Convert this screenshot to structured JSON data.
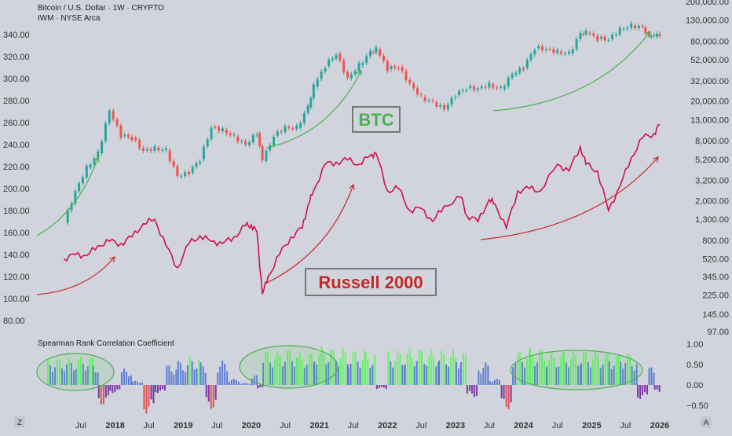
{
  "header": {
    "title": "Bitcoin / U.S. Dollar · 1W · CRYPTO",
    "subtitle": "IWM · NYSE Arca"
  },
  "colors": {
    "background": "#d1d4dc",
    "btc_up": "#26a69a",
    "btc_down": "#ef5350",
    "iwm_line": "#d0104c",
    "btc_label": "#4caf50",
    "iwm_label": "#c62828",
    "arrow_green": "#4caf50",
    "arrow_red": "#c62828",
    "corr_high": "#4cff4c",
    "corr_mid": "#4a6fd0",
    "corr_neg": "#6a1b9a",
    "corr_low": "#e53935"
  },
  "annotations": {
    "btc_label": "BTC",
    "iwm_label": "Russell 2000"
  },
  "controls": {
    "left_button": "Z",
    "right_button": "A"
  },
  "chart_data": [
    {
      "type": "line",
      "series": [
        {
          "name": "IWM",
          "axis": "left",
          "points": [
            [
              "2017-04",
              136
            ],
            [
              "2017-06",
              140
            ],
            [
              "2017-08",
              139
            ],
            [
              "2017-10",
              148
            ],
            [
              "2017-12",
              152
            ],
            [
              "2018-02",
              150
            ],
            [
              "2018-04",
              156
            ],
            [
              "2018-06",
              168
            ],
            [
              "2018-08",
              172
            ],
            [
              "2018-10",
              148
            ],
            [
              "2018-12",
              128
            ],
            [
              "2019-02",
              150
            ],
            [
              "2019-04",
              157
            ],
            [
              "2019-06",
              152
            ],
            [
              "2019-08",
              150
            ],
            [
              "2019-10",
              156
            ],
            [
              "2019-12",
              166
            ],
            [
              "2020-01",
              167
            ],
            [
              "2020-02",
              160
            ],
            [
              "2020-03",
              104
            ],
            [
              "2020-04",
              120
            ],
            [
              "2020-06",
              140
            ],
            [
              "2020-08",
              156
            ],
            [
              "2020-10",
              164
            ],
            [
              "2020-11",
              185
            ],
            [
              "2020-12",
              198
            ],
            [
              "2021-02",
              222
            ],
            [
              "2021-04",
              224
            ],
            [
              "2021-06",
              226
            ],
            [
              "2021-08",
              222
            ],
            [
              "2021-10",
              230
            ],
            [
              "2021-11",
              232
            ],
            [
              "2022-01",
              198
            ],
            [
              "2022-03",
              200
            ],
            [
              "2022-05",
              180
            ],
            [
              "2022-07",
              182
            ],
            [
              "2022-09",
              170
            ],
            [
              "2022-11",
              184
            ],
            [
              "2023-02",
              192
            ],
            [
              "2023-03",
              176
            ],
            [
              "2023-05",
              170
            ],
            [
              "2023-07",
              190
            ],
            [
              "2023-08",
              186
            ],
            [
              "2023-10",
              164
            ],
            [
              "2023-12",
              198
            ],
            [
              "2024-02",
              200
            ],
            [
              "2024-04",
              198
            ],
            [
              "2024-07",
              222
            ],
            [
              "2024-09",
              216
            ],
            [
              "2024-11",
              238
            ],
            [
              "2024-12",
              222
            ],
            [
              "2025-02",
              216
            ],
            [
              "2025-04",
              180
            ],
            [
              "2025-06",
              202
            ],
            [
              "2025-08",
              228
            ],
            [
              "2025-10",
              246
            ],
            [
              "2025-12",
              250
            ],
            [
              "2026-01",
              258
            ]
          ]
        }
      ],
      "y_left_ticks": [
        "340.00",
        "320.00",
        "300.00",
        "280.00",
        "260.00",
        "240.00",
        "220.00",
        "200.00",
        "180.00",
        "160.00",
        "140.00",
        "120.00",
        "100.00",
        "80.00"
      ],
      "ylim_left": [
        80,
        340
      ]
    },
    {
      "type": "candlestick",
      "series": [
        {
          "name": "BTCUSD",
          "axis": "right",
          "scale": "log",
          "points": [
            [
              "2017-04",
              1200
            ],
            [
              "2017-06",
              2500
            ],
            [
              "2017-08",
              4300
            ],
            [
              "2017-10",
              6000
            ],
            [
              "2017-12",
              16000
            ],
            [
              "2018-02",
              9000
            ],
            [
              "2018-04",
              8500
            ],
            [
              "2018-06",
              6400
            ],
            [
              "2018-08",
              6800
            ],
            [
              "2018-10",
              6400
            ],
            [
              "2018-12",
              3500
            ],
            [
              "2019-02",
              3800
            ],
            [
              "2019-04",
              5200
            ],
            [
              "2019-06",
              11000
            ],
            [
              "2019-08",
              10300
            ],
            [
              "2019-10",
              8800
            ],
            [
              "2019-12",
              7200
            ],
            [
              "2020-02",
              9500
            ],
            [
              "2020-03",
              5000
            ],
            [
              "2020-05",
              9000
            ],
            [
              "2020-07",
              11000
            ],
            [
              "2020-09",
              10800
            ],
            [
              "2020-11",
              17500
            ],
            [
              "2020-12",
              28000
            ],
            [
              "2021-02",
              45000
            ],
            [
              "2021-04",
              60000
            ],
            [
              "2021-06",
              34000
            ],
            [
              "2021-08",
              46000
            ],
            [
              "2021-10",
              62000
            ],
            [
              "2021-11",
              66000
            ],
            [
              "2022-01",
              42000
            ],
            [
              "2022-03",
              44000
            ],
            [
              "2022-05",
              30000
            ],
            [
              "2022-07",
              22000
            ],
            [
              "2022-09",
              19500
            ],
            [
              "2022-11",
              16500
            ],
            [
              "2023-01",
              23000
            ],
            [
              "2023-03",
              27000
            ],
            [
              "2023-05",
              27000
            ],
            [
              "2023-07",
              29500
            ],
            [
              "2023-09",
              26500
            ],
            [
              "2023-11",
              37000
            ],
            [
              "2024-01",
              43000
            ],
            [
              "2024-03",
              68000
            ],
            [
              "2024-05",
              67000
            ],
            [
              "2024-07",
              63000
            ],
            [
              "2024-09",
              60000
            ],
            [
              "2024-11",
              95000
            ],
            [
              "2024-12",
              97000
            ],
            [
              "2025-02",
              85000
            ],
            [
              "2025-04",
              84000
            ],
            [
              "2025-06",
              106000
            ],
            [
              "2025-08",
              115000
            ],
            [
              "2025-10",
              110000
            ],
            [
              "2025-11",
              88000
            ],
            [
              "2025-12",
              89000
            ],
            [
              "2026-01",
              92000
            ]
          ]
        }
      ],
      "y_right_ticks": [
        "200,000.00",
        "130,000.00",
        "80,000.00",
        "52,000.00",
        "32,000.00",
        "20,000.00",
        "13,000.00",
        "8,000.00",
        "5,200.00",
        "3,200.00",
        "2,000.00",
        "1,300.00",
        "800.00",
        "520.00",
        "345.00",
        "225.00",
        "145.00",
        "97.00"
      ]
    },
    {
      "type": "bar",
      "title": "Spearman Rank Correlation Coefficient",
      "ylim": [
        -0.6,
        1.05
      ],
      "y_ticks": [
        "1.00",
        "0.50",
        "0.00",
        "−0.50"
      ],
      "segments": [
        [
          "2017-01",
          0.65
        ],
        [
          "2017-06",
          0.7
        ],
        [
          "2017-09",
          0.55
        ],
        [
          "2017-10",
          -0.5
        ],
        [
          "2017-12",
          -0.2
        ],
        [
          "2018-02",
          0.4
        ],
        [
          "2018-04",
          0.1
        ],
        [
          "2018-06",
          -0.7
        ],
        [
          "2018-08",
          -0.2
        ],
        [
          "2018-10",
          0.5
        ],
        [
          "2018-12",
          0.6
        ],
        [
          "2019-02",
          0.7
        ],
        [
          "2019-04",
          0.55
        ],
        [
          "2019-05",
          -0.6
        ],
        [
          "2019-07",
          0.6
        ],
        [
          "2019-09",
          0.15
        ],
        [
          "2019-11",
          0.05
        ],
        [
          "2020-01",
          0.25
        ],
        [
          "2020-02",
          -0.1
        ],
        [
          "2020-03",
          0.85
        ],
        [
          "2020-06",
          0.9
        ],
        [
          "2020-09",
          0.8
        ],
        [
          "2020-12",
          0.95
        ],
        [
          "2021-03",
          0.9
        ],
        [
          "2021-06",
          0.85
        ],
        [
          "2021-09",
          0.8
        ],
        [
          "2021-11",
          -0.1
        ],
        [
          "2022-01",
          0.85
        ],
        [
          "2022-04",
          0.9
        ],
        [
          "2022-07",
          0.88
        ],
        [
          "2022-10",
          0.85
        ],
        [
          "2023-01",
          0.8
        ],
        [
          "2023-03",
          -0.3
        ],
        [
          "2023-05",
          0.55
        ],
        [
          "2023-07",
          0.15
        ],
        [
          "2023-09",
          -0.6
        ],
        [
          "2023-11",
          0.85
        ],
        [
          "2024-02",
          0.9
        ],
        [
          "2024-05",
          0.8
        ],
        [
          "2024-08",
          0.85
        ],
        [
          "2024-11",
          0.85
        ],
        [
          "2025-02",
          0.8
        ],
        [
          "2025-04",
          0.75
        ],
        [
          "2025-06",
          0.8
        ],
        [
          "2025-08",
          0.7
        ],
        [
          "2025-09",
          -0.35
        ],
        [
          "2025-11",
          0.45
        ],
        [
          "2025-12",
          -0.2
        ],
        [
          "2026-01",
          0.1
        ]
      ]
    }
  ],
  "x_ticks": [
    {
      "label": "Jul",
      "date": "2017-07"
    },
    {
      "label": "2018",
      "date": "2018-01"
    },
    {
      "label": "Jul",
      "date": "2018-07"
    },
    {
      "label": "2019",
      "date": "2019-01"
    },
    {
      "label": "Jul",
      "date": "2019-07"
    },
    {
      "label": "2020",
      "date": "2020-01"
    },
    {
      "label": "Jul",
      "date": "2020-07"
    },
    {
      "label": "2021",
      "date": "2021-01"
    },
    {
      "label": "Jul",
      "date": "2021-07"
    },
    {
      "label": "2022",
      "date": "2022-01"
    },
    {
      "label": "Jul",
      "date": "2022-07"
    },
    {
      "label": "2023",
      "date": "2023-01"
    },
    {
      "label": "Jul",
      "date": "2023-07"
    },
    {
      "label": "2024",
      "date": "2024-01"
    },
    {
      "label": "Jul",
      "date": "2024-07"
    },
    {
      "label": "2025",
      "date": "2025-01"
    },
    {
      "label": "Jul",
      "date": "2025-07"
    },
    {
      "label": "2026",
      "date": "2026-01"
    }
  ]
}
